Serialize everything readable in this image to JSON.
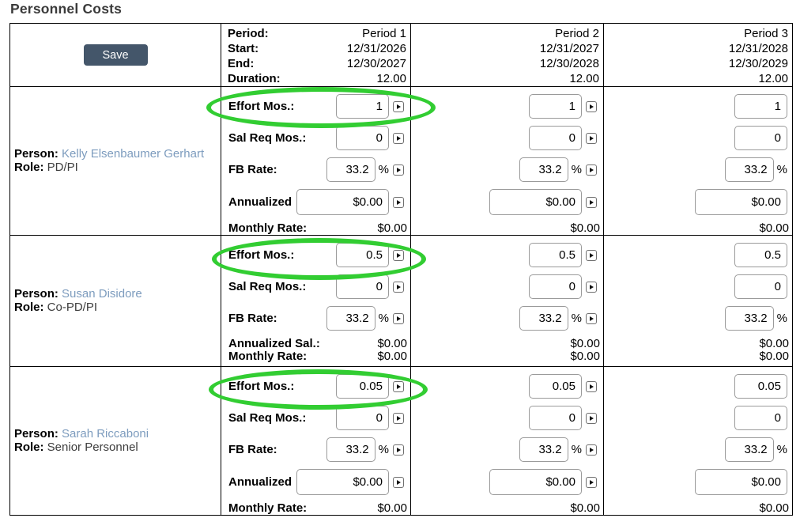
{
  "title": "Personnel Costs",
  "save_button": "Save",
  "header": {
    "period_label": "Period:",
    "start_label": "Start:",
    "end_label": "End:",
    "duration_label": "Duration:",
    "periods": [
      {
        "name": "Period 1",
        "start": "12/31/2026",
        "end": "12/30/2027",
        "duration": "12.00"
      },
      {
        "name": "Period 2",
        "start": "12/31/2027",
        "end": "12/30/2028",
        "duration": "12.00"
      },
      {
        "name": "Period 3",
        "start": "12/31/2028",
        "end": "12/30/2029",
        "duration": "12.00"
      }
    ]
  },
  "labels": {
    "person": "Person:",
    "role": "Role:",
    "effort": "Effort Mos.:",
    "sal_req": "Sal Req Mos.:",
    "fb_rate": "FB Rate:",
    "annualized": "Annualized",
    "annualized_sal": "Annualized Sal.:",
    "monthly_rate": "Monthly Rate:",
    "percent": "%"
  },
  "people": [
    {
      "name": "Kelly Elsenbaumer Gerhart",
      "role": "PD/PI",
      "periods": [
        {
          "effort": "1",
          "sal_req": "0",
          "fb_rate": "33.2",
          "annualized": "$0.00",
          "monthly_rate": "$0.00"
        },
        {
          "effort": "1",
          "sal_req": "0",
          "fb_rate": "33.2",
          "annualized": "$0.00",
          "monthly_rate": "$0.00"
        },
        {
          "effort": "1",
          "sal_req": "0",
          "fb_rate": "33.2",
          "annualized": "$0.00",
          "monthly_rate": "$0.00"
        }
      ]
    },
    {
      "name": "Susan Disidore",
      "role": "Co-PD/PI",
      "periods": [
        {
          "effort": "0.5",
          "sal_req": "0",
          "fb_rate": "33.2",
          "annualized": "$0.00",
          "monthly_rate": "$0.00"
        },
        {
          "effort": "0.5",
          "sal_req": "0",
          "fb_rate": "33.2",
          "annualized": "$0.00",
          "monthly_rate": "$0.00"
        },
        {
          "effort": "0.5",
          "sal_req": "0",
          "fb_rate": "33.2",
          "annualized": "$0.00",
          "monthly_rate": "$0.00"
        }
      ]
    },
    {
      "name": "Sarah Riccaboni",
      "role": "Senior Personnel",
      "periods": [
        {
          "effort": "0.05",
          "sal_req": "0",
          "fb_rate": "33.2",
          "annualized": "$0.00",
          "monthly_rate": "$0.00"
        },
        {
          "effort": "0.05",
          "sal_req": "0",
          "fb_rate": "33.2",
          "annualized": "$0.00",
          "monthly_rate": "$0.00"
        },
        {
          "effort": "0.05",
          "sal_req": "0",
          "fb_rate": "33.2",
          "annualized": "$0.00",
          "monthly_rate": "$0.00"
        }
      ]
    }
  ],
  "annotation": {
    "shape": "ellipse",
    "color": "#32cd32"
  },
  "colors": {
    "annotation_green": "#32cd32",
    "save_button_bg": "#44566a",
    "link_blue": "#7d9cbe",
    "table_border": "#000000",
    "input_border": "#9a9a9a",
    "title_text": "#3b3b3b"
  }
}
